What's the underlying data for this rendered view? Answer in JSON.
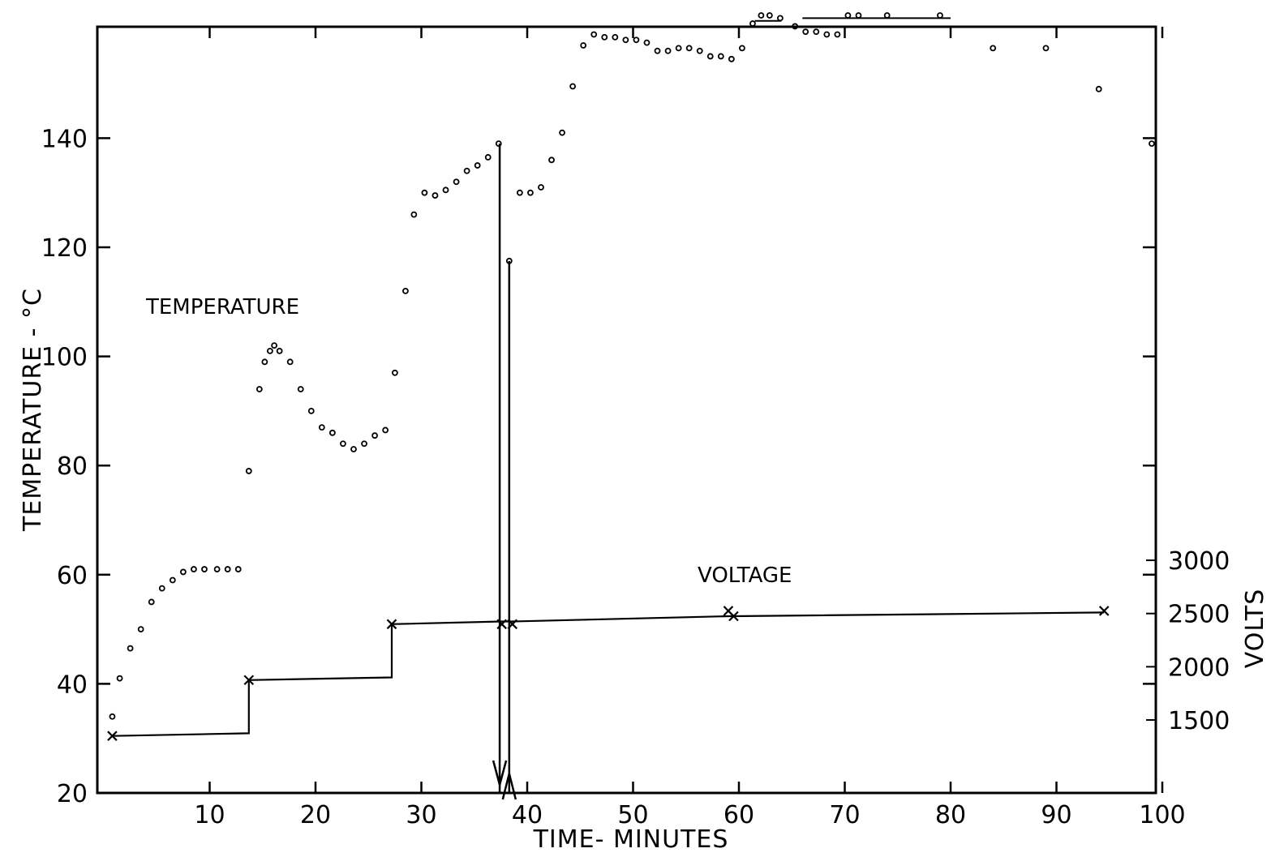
{
  "chart_data": {
    "type": "scatter",
    "xlabel": "TIME- MINUTES",
    "ylabel": "TEMPERATURE - °C",
    "y2label": "VOLTS",
    "xlim": [
      0,
      100
    ],
    "ylim": [
      20,
      160
    ],
    "y2lim": [
      1000,
      3500
    ],
    "x_ticks": [
      10,
      20,
      30,
      40,
      50,
      60,
      70,
      80,
      90,
      100
    ],
    "y_ticks": [
      20,
      40,
      60,
      80,
      100,
      120,
      140
    ],
    "y2_ticks": [
      1500,
      2000,
      2500,
      3000
    ],
    "grid": false,
    "annotations": {
      "temperature_label": "TEMPERATURE",
      "voltage_label": "VOLTAGE"
    },
    "series": [
      {
        "name": "TEMPERATURE",
        "marker": "circle",
        "axis": "left",
        "points": [
          [
            0.8,
            34
          ],
          [
            1.5,
            41
          ],
          [
            2.5,
            46.5
          ],
          [
            3.5,
            50
          ],
          [
            4.5,
            55
          ],
          [
            5.5,
            57.5
          ],
          [
            6.5,
            59
          ],
          [
            7.5,
            60.5
          ],
          [
            8.5,
            61
          ],
          [
            9.5,
            61
          ],
          [
            10.7,
            61
          ],
          [
            11.7,
            61
          ],
          [
            12.7,
            61
          ],
          [
            13.7,
            79
          ],
          [
            14.7,
            94
          ],
          [
            15.2,
            99
          ],
          [
            15.7,
            101
          ],
          [
            16.1,
            102
          ],
          [
            16.6,
            101
          ],
          [
            17.6,
            99
          ],
          [
            18.6,
            94
          ],
          [
            19.6,
            90
          ],
          [
            20.6,
            87
          ],
          [
            21.6,
            86
          ],
          [
            22.6,
            84
          ],
          [
            23.6,
            83
          ],
          [
            24.6,
            84
          ],
          [
            25.6,
            85.5
          ],
          [
            26.6,
            86.5
          ],
          [
            27.5,
            97
          ],
          [
            28.5,
            112
          ],
          [
            29.3,
            126
          ],
          [
            30.3,
            130
          ],
          [
            31.3,
            129.5
          ],
          [
            32.3,
            130.5
          ],
          [
            33.3,
            132
          ],
          [
            34.3,
            134
          ],
          [
            35.3,
            135
          ],
          [
            36.3,
            136.5
          ],
          [
            37.3,
            139
          ],
          [
            38.3,
            117.5
          ],
          [
            39.3,
            130
          ],
          [
            40.3,
            130
          ],
          [
            41.3,
            131
          ],
          [
            42.3,
            136
          ],
          [
            43.3,
            141
          ],
          [
            44.3,
            149.5
          ],
          [
            45.3,
            157
          ],
          [
            46.3,
            159
          ],
          [
            47.3,
            158.5
          ],
          [
            48.3,
            158.5
          ],
          [
            49.3,
            158
          ],
          [
            50.3,
            158
          ],
          [
            51.3,
            157.5
          ],
          [
            52.3,
            156
          ],
          [
            53.3,
            156
          ],
          [
            54.3,
            156.5
          ],
          [
            55.3,
            156.5
          ],
          [
            56.3,
            156
          ],
          [
            57.3,
            155
          ],
          [
            58.3,
            155
          ],
          [
            59.3,
            154.5
          ],
          [
            60.3,
            156.5
          ],
          [
            61.3,
            161
          ],
          [
            62.1,
            162.5
          ],
          [
            62.9,
            162.5
          ],
          [
            63.9,
            162
          ],
          [
            65.3,
            160.5
          ],
          [
            66.3,
            159.5
          ],
          [
            67.3,
            159.5
          ],
          [
            68.3,
            159
          ],
          [
            69.3,
            159
          ],
          [
            70.3,
            162.5
          ],
          [
            71.3,
            162.5
          ],
          [
            74,
            162.5
          ],
          [
            79,
            162.5
          ],
          [
            84,
            156.5
          ],
          [
            89,
            156.5
          ],
          [
            94,
            149
          ],
          [
            99,
            139
          ]
        ]
      },
      {
        "name": "VOLTAGE",
        "marker": "x",
        "axis": "right",
        "points": [
          [
            0.8,
            1350
          ],
          [
            13.7,
            1875
          ],
          [
            27.2,
            2400
          ],
          [
            37.6,
            2400
          ],
          [
            38.6,
            2400
          ],
          [
            59,
            2525
          ],
          [
            59.5,
            2475
          ],
          [
            94.5,
            2525
          ]
        ],
        "line": [
          [
            0.8,
            1350
          ],
          [
            13.7,
            1375
          ],
          [
            13.7,
            1875
          ],
          [
            27.2,
            1900
          ],
          [
            27.2,
            2400
          ],
          [
            37.6,
            2425
          ],
          [
            38.6,
            2425
          ],
          [
            59,
            2475
          ],
          [
            59.5,
            2475
          ],
          [
            94.5,
            2510
          ]
        ]
      }
    ],
    "vertical_arrows": [
      {
        "x": 37.4,
        "y_top": 139,
        "y_bottom": 20,
        "direction": "down"
      },
      {
        "x": 38.3,
        "y_top": 117.5,
        "y_bottom": 20,
        "direction": "up"
      }
    ],
    "flat_segments": [
      {
        "x1": 61.5,
        "x2": 64,
        "y": 161.5
      },
      {
        "x1": 66,
        "x2": 80,
        "y": 162
      }
    ]
  }
}
